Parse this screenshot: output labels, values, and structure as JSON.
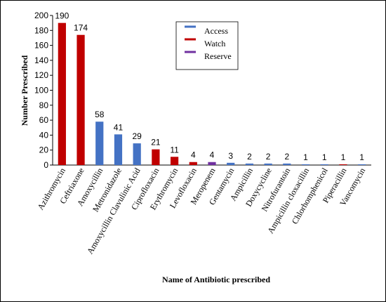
{
  "chart_data": {
    "type": "bar",
    "title": "",
    "xlabel": "Name of Antibiotic prescribed",
    "ylabel": "Number Prescribed",
    "ylim": [
      0,
      200
    ],
    "yticks": [
      0,
      20,
      40,
      60,
      80,
      100,
      120,
      140,
      160,
      180,
      200
    ],
    "grid": false,
    "legend_position": "top-center",
    "categories": [
      "Azithromycin",
      "Ceftriaxone",
      "Amoxycillin",
      "Metronidazole",
      "Amoxycillin Clavulinic Acid",
      "Ciprofloxacin",
      "Erythromycin",
      "Levofloxacin",
      "Meropenem",
      "Gentamycin",
      "Ampicillin",
      "Doxycycline",
      "Nitrofurantoin",
      "Ampicillin cloxacillin",
      "Chlorhomphenicol",
      "Piperacillin",
      "Vancomycin"
    ],
    "values": [
      190,
      174,
      58,
      41,
      29,
      21,
      11,
      4,
      4,
      3,
      2,
      2,
      2,
      1,
      1,
      1,
      1
    ],
    "data_labels": [
      "190",
      "174",
      "58",
      "41",
      "29",
      "21",
      "11",
      "4",
      "4",
      "3",
      "2",
      "2",
      "2",
      "1",
      "1",
      "1",
      "1"
    ],
    "groups": [
      "Watch",
      "Watch",
      "Access",
      "Access",
      "Access",
      "Watch",
      "Watch",
      "Watch",
      "Reserve",
      "Access",
      "Access",
      "Access",
      "Access",
      "Access",
      "Access",
      "Watch",
      "Access"
    ],
    "legend": [
      {
        "name": "Access",
        "color": "#4472c4"
      },
      {
        "name": "Watch",
        "color": "#c00000"
      },
      {
        "name": "Reserve",
        "color": "#7030a0"
      }
    ]
  }
}
